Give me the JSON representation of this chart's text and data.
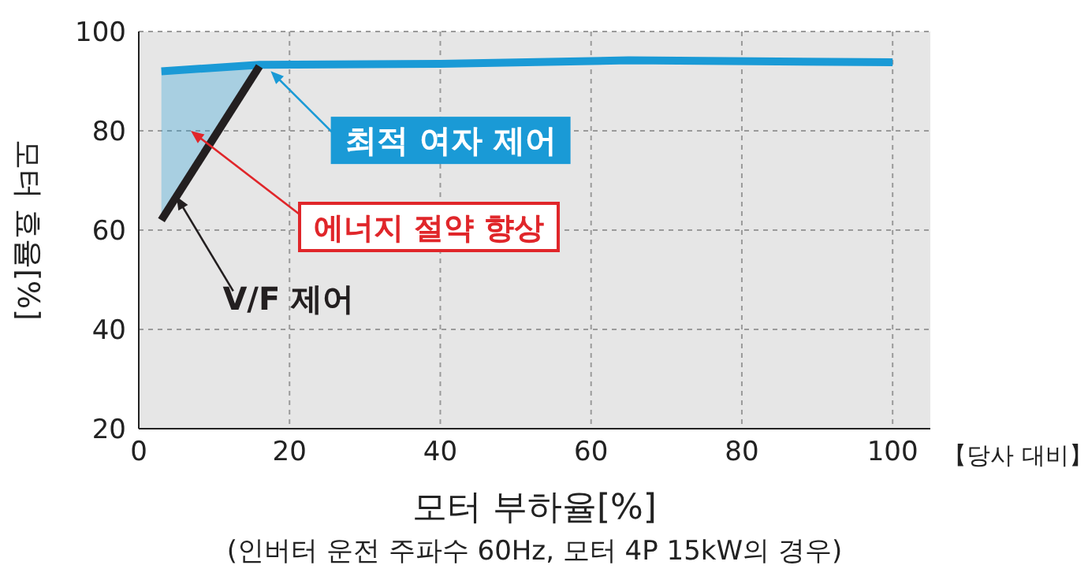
{
  "chart_data": {
    "type": "line",
    "ylabel": "모터 효율[%]",
    "xlabel": "모터 부하율[%]",
    "xlim": [
      0,
      105
    ],
    "ylim": [
      20,
      100
    ],
    "xticks": [
      0,
      20,
      40,
      60,
      80,
      100
    ],
    "yticks": [
      20,
      40,
      60,
      80,
      100
    ],
    "grid": true,
    "marker": "none",
    "line_style": "solid",
    "series": [
      {
        "name": "최적 여자 제어",
        "color": "#1a9ad6",
        "x": [
          3,
          16,
          40,
          65,
          100
        ],
        "values": [
          92,
          93.3,
          93.5,
          94.2,
          93.8
        ],
        "lower": [
          62,
          93,
          null,
          null,
          null
        ],
        "upper": [
          92,
          93.3,
          null,
          null,
          null
        ]
      },
      {
        "name": "V/F 제어",
        "color": "#231f20",
        "x": [
          3,
          16
        ],
        "values": [
          62,
          93
        ]
      }
    ],
    "annotations": [
      "에너지 절약 향상",
      "【당사 대비】",
      "(인버터 운전 주파수 60Hz, 모터 4P 15kW의 경우)"
    ]
  }
}
